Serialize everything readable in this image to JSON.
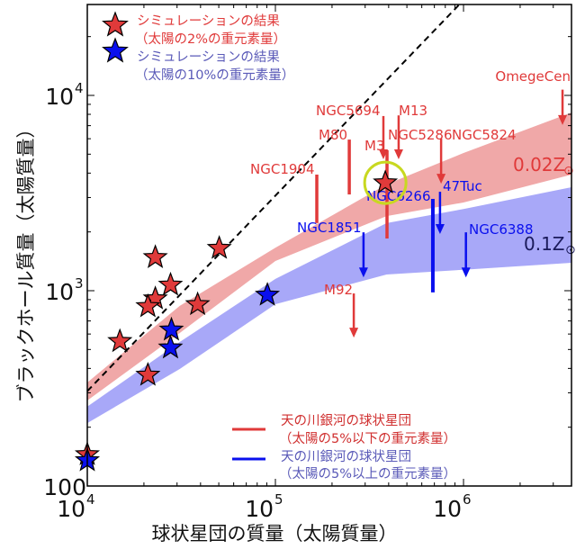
{
  "chart_data": {
    "type": "scatter",
    "xlabel": "球状星団の質量（太陽質量）",
    "ylabel": "ブラックホール質量（太陽質量）",
    "x_scale": "log",
    "y_scale": "log",
    "xlim": [
      10000,
      3750000
    ],
    "ylim": [
      100,
      29200
    ],
    "x_ticks": [
      {
        "base": "10",
        "exp": "4",
        "value": 10000
      },
      {
        "base": "10",
        "exp": "5",
        "value": 100000
      },
      {
        "base": "10",
        "exp": "6",
        "value": 1000000
      }
    ],
    "y_ticks": [
      {
        "base": "100",
        "exp": "",
        "value": 100
      },
      {
        "base": "10",
        "exp": "3",
        "value": 1000
      },
      {
        "base": "10",
        "exp": "4",
        "value": 10000
      }
    ],
    "grid": false,
    "colors": {
      "red": "#e03a3a",
      "blue": "#0a10ee",
      "red_band": "#f0a8a8",
      "blue_band": "#a8a8f8",
      "highlight": "#c8d820",
      "legend_red_text": "#e03a3a",
      "legend_blue_text": "#5a5ab8",
      "band_label_blue": "#1a1a5a"
    },
    "legend": {
      "top": [
        {
          "marker": "star",
          "color": "red",
          "line1": "シミュレーションの結果",
          "line2": "（太陽の2%の重元素量）"
        },
        {
          "marker": "star",
          "color": "blue",
          "line1": "シミュレーションの結果",
          "line2": "（太陽の10%の重元素量）"
        }
      ],
      "bottom": [
        {
          "marker": "line",
          "color": "red",
          "line1": "天の川銀河の球状星団",
          "line2": "（太陽の5%以下の重元素量）"
        },
        {
          "marker": "line",
          "color": "blue",
          "line1": "天の川銀河の球状星団",
          "line2": "（太陽の5%以上の重元素量）"
        }
      ]
    },
    "simulation_red": [
      [
        23000,
        1480
      ],
      [
        50300,
        1650
      ],
      [
        27700,
        1070
      ],
      [
        23000,
        910
      ],
      [
        21000,
        830
      ],
      [
        38600,
        850
      ],
      [
        14900,
        550
      ],
      [
        21000,
        370
      ],
      [
        10000,
        145
      ],
      [
        384000,
        3570
      ]
    ],
    "simulation_blue": [
      [
        28000,
        630
      ],
      [
        27700,
        510
      ],
      [
        90600,
        950
      ],
      [
        10000,
        135
      ]
    ],
    "highlighted_point": [
      384000,
      3570
    ],
    "bands": [
      {
        "label": "0.02Z",
        "symbol": "⊙",
        "color": "red",
        "x": [
          10000,
          31000,
          100000,
          390000,
          1000000,
          3750000
        ],
        "upper": [
          339,
          836,
          1660,
          3500,
          5070,
          8170
        ],
        "lower": [
          274,
          607,
          1420,
          2410,
          2830,
          3930
        ]
      },
      {
        "label": "0.1Z",
        "symbol": "⊙",
        "color": "blue",
        "x": [
          10000,
          31000,
          100000,
          390000,
          1000000,
          3750000
        ],
        "upper": [
          255,
          546,
          1150,
          2220,
          2620,
          3390
        ],
        "lower": [
          210,
          397,
          853,
          1210,
          1280,
          1390
        ]
      }
    ],
    "reference_line": {
      "style": "dashed",
      "points": [
        [
          10000,
          306
        ],
        [
          950000,
          29200
        ]
      ]
    },
    "observations": [
      {
        "name": "NGC1904",
        "group": "red",
        "mass": 166000,
        "bh_top": 3930,
        "bh_bottom": 2220,
        "kind": "range"
      },
      {
        "name": "M80",
        "group": "red",
        "mass": 247000,
        "bh_top": 5940,
        "bh_bottom": 3110,
        "kind": "range"
      },
      {
        "name": "NGC5694",
        "group": "red",
        "mass": 375000,
        "bh_top": 7840,
        "bh_bottom": 4710,
        "kind": "upper_limit"
      },
      {
        "name": "M13",
        "group": "red",
        "mass": 452000,
        "bh_top": 7900,
        "bh_bottom": 4710,
        "kind": "upper_limit"
      },
      {
        "name": "M3",
        "group": "red",
        "mass": 392000,
        "bh_top": 5240,
        "bh_bottom": 1850,
        "kind": "range"
      },
      {
        "name": "NGC5286",
        "group": "red",
        "mass": null,
        "bh_top": null,
        "bh_bottom": null,
        "kind": "label"
      },
      {
        "name": "NGC5824",
        "group": "red",
        "mass": 760000,
        "bh_top": 6010,
        "bh_bottom": 3530,
        "kind": "upper_limit"
      },
      {
        "name": "OmegeCen",
        "group": "red",
        "mass": 3360000,
        "bh_top": 10700,
        "bh_bottom": 7050,
        "kind": "upper_limit"
      },
      {
        "name": "M92",
        "group": "red",
        "mass": 261000,
        "bh_top": 968,
        "bh_bottom": 575,
        "kind": "upper_limit"
      },
      {
        "name": "NGC1851",
        "group": "blue",
        "mass": 294000,
        "bh_top": 1990,
        "bh_bottom": 1170,
        "kind": "upper_limit"
      },
      {
        "name": "NGC6266",
        "group": "blue",
        "mass": 687000,
        "bh_top": 2950,
        "bh_bottom": 980,
        "kind": "range"
      },
      {
        "name": "47Tuc",
        "group": "blue",
        "mass": 750000,
        "bh_top": 3210,
        "bh_bottom": 1950,
        "kind": "upper_limit"
      },
      {
        "name": "NGC6388",
        "group": "blue",
        "mass": 1030000,
        "bh_top": 1990,
        "bh_bottom": 1170,
        "kind": "upper_limit"
      }
    ]
  }
}
